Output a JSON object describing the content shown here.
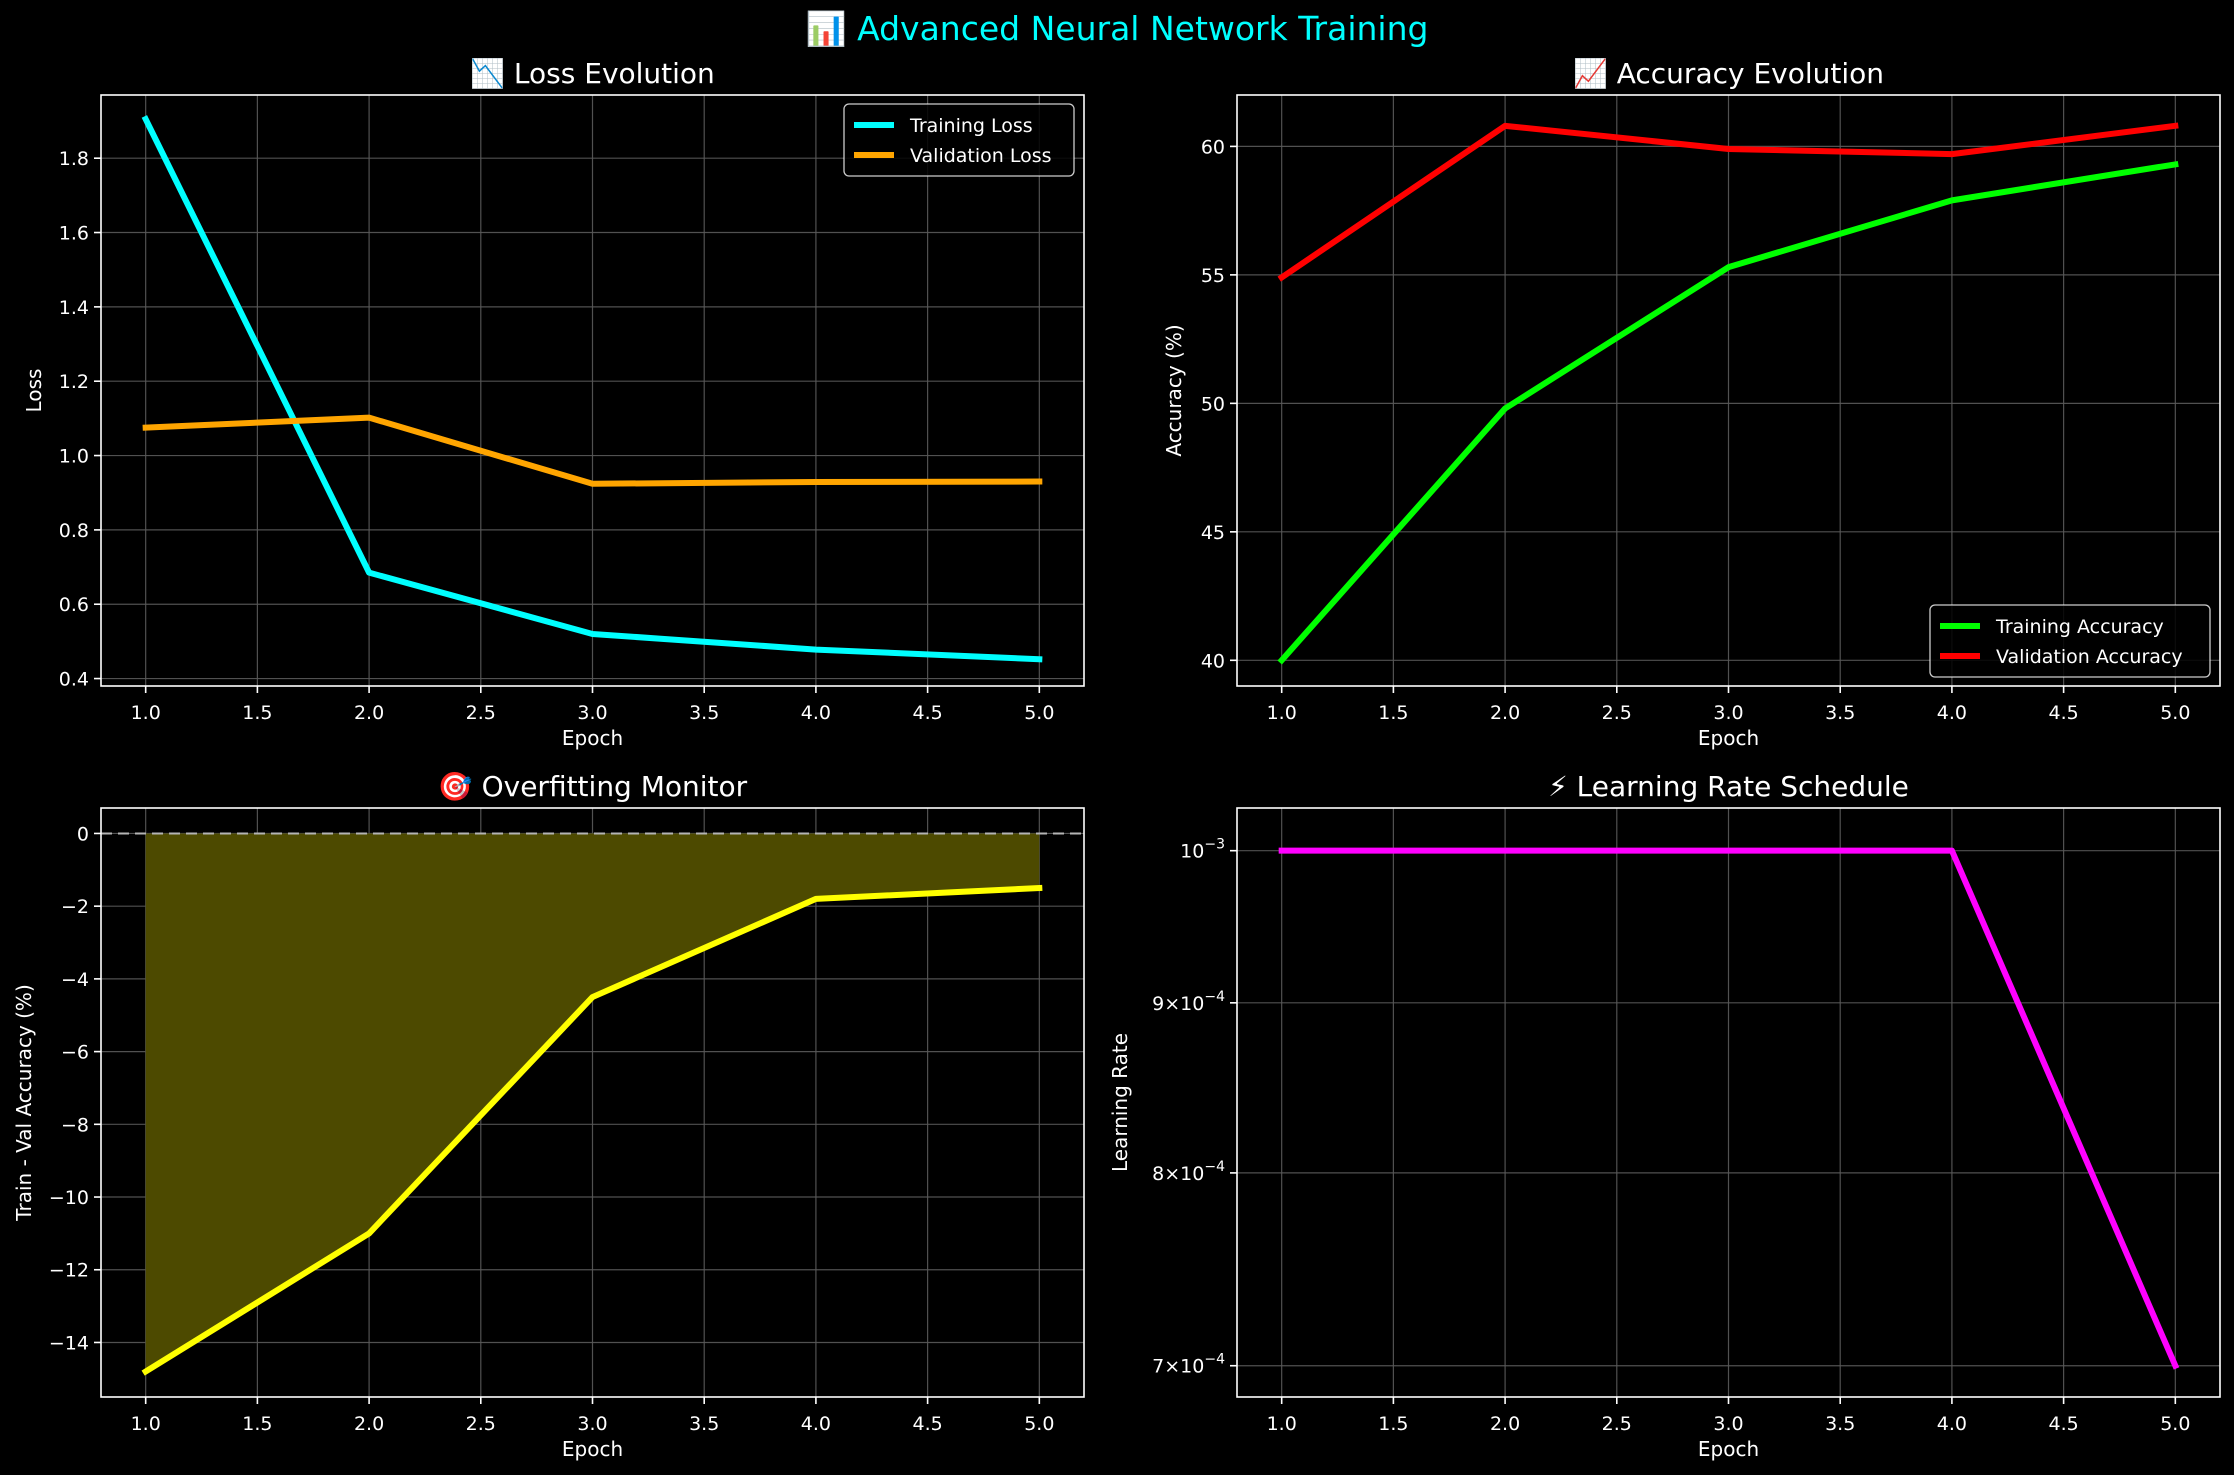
{
  "suptitle": "📊 Advanced Neural Network Training",
  "colors": {
    "background": "#000000",
    "foreground": "#ffffff",
    "title": "#00ffff",
    "grid": "#5a5a5a",
    "training_loss": "#00ffff",
    "validation_loss": "#ffa500",
    "training_accuracy": "#00ff00",
    "validation_accuracy": "#ff0000",
    "gap": "#ffff00",
    "gap_fill": "#4d4a00",
    "learning_rate": "#ff00ff",
    "zero_line": "#b4b4b4"
  },
  "chart_data": [
    {
      "id": "loss",
      "type": "line",
      "title": "📉 Loss Evolution",
      "xlabel": "Epoch",
      "ylabel": "Loss",
      "x": [
        1,
        2,
        3,
        4,
        5
      ],
      "xlim": [
        0.8,
        5.2
      ],
      "ylim": [
        0.38,
        1.97
      ],
      "xticks": [
        1.0,
        1.5,
        2.0,
        2.5,
        3.0,
        3.5,
        4.0,
        4.5,
        5.0
      ],
      "yticks": [
        0.4,
        0.6,
        0.8,
        1.0,
        1.2,
        1.4,
        1.6,
        1.8
      ],
      "ytick_decimals": 1,
      "grid": true,
      "legend": "upper-right",
      "series": [
        {
          "name": "Training Loss",
          "color_key": "training_loss",
          "values": [
            1.905,
            0.685,
            0.52,
            0.478,
            0.452
          ]
        },
        {
          "name": "Validation Loss",
          "color_key": "validation_loss",
          "values": [
            1.075,
            1.102,
            0.924,
            0.929,
            0.93
          ]
        }
      ]
    },
    {
      "id": "accuracy",
      "type": "line",
      "title": "📈 Accuracy Evolution",
      "xlabel": "Epoch",
      "ylabel": "Accuracy (%)",
      "x": [
        1,
        2,
        3,
        4,
        5
      ],
      "xlim": [
        0.8,
        5.2
      ],
      "ylim": [
        39.0,
        62.0
      ],
      "xticks": [
        1.0,
        1.5,
        2.0,
        2.5,
        3.0,
        3.5,
        4.0,
        4.5,
        5.0
      ],
      "yticks": [
        40,
        45,
        50,
        55,
        60
      ],
      "ytick_decimals": 0,
      "grid": true,
      "legend": "lower-right",
      "series": [
        {
          "name": "Training Accuracy",
          "color_key": "training_accuracy",
          "values": [
            40.0,
            49.8,
            55.3,
            57.9,
            59.3
          ]
        },
        {
          "name": "Validation Accuracy",
          "color_key": "validation_accuracy",
          "values": [
            54.9,
            60.8,
            59.9,
            59.7,
            60.8
          ]
        }
      ]
    },
    {
      "id": "overfitting",
      "type": "area",
      "title": "🎯 Overfitting Monitor",
      "xlabel": "Epoch",
      "ylabel": "Train - Val Accuracy (%)",
      "x": [
        1,
        2,
        3,
        4,
        5
      ],
      "xlim": [
        0.8,
        5.2
      ],
      "ylim": [
        -15.5,
        0.7
      ],
      "xticks": [
        1.0,
        1.5,
        2.0,
        2.5,
        3.0,
        3.5,
        4.0,
        4.5,
        5.0
      ],
      "yticks": [
        -14,
        -12,
        -10,
        -8,
        -6,
        -4,
        -2,
        0
      ],
      "ytick_decimals": 0,
      "grid": true,
      "zero_line": true,
      "series": [
        {
          "name": "",
          "color_key": "gap",
          "values": [
            -14.8,
            -11.0,
            -4.5,
            -1.8,
            -1.5
          ]
        }
      ]
    },
    {
      "id": "lr",
      "type": "line",
      "title": "⚡ Learning Rate Schedule",
      "xlabel": "Epoch",
      "ylabel": "Learning Rate",
      "yscale": "log",
      "x": [
        1,
        2,
        3,
        4,
        5
      ],
      "xlim": [
        0.8,
        5.2
      ],
      "ylim": [
        0.000685,
        0.00103
      ],
      "xticks": [
        1.0,
        1.5,
        2.0,
        2.5,
        3.0,
        3.5,
        4.0,
        4.5,
        5.0
      ],
      "yticks": [
        {
          "value": 0.001,
          "mantissa": "",
          "exponent": "−3"
        },
        {
          "value": 0.0009,
          "mantissa": "9",
          "exponent": "−4"
        },
        {
          "value": 0.0008,
          "mantissa": "8",
          "exponent": "−4"
        },
        {
          "value": 0.0007,
          "mantissa": "7",
          "exponent": "−4"
        }
      ],
      "grid": true,
      "series": [
        {
          "name": "",
          "color_key": "learning_rate",
          "values": [
            0.001,
            0.001,
            0.001,
            0.001,
            0.0007
          ]
        }
      ]
    }
  ]
}
